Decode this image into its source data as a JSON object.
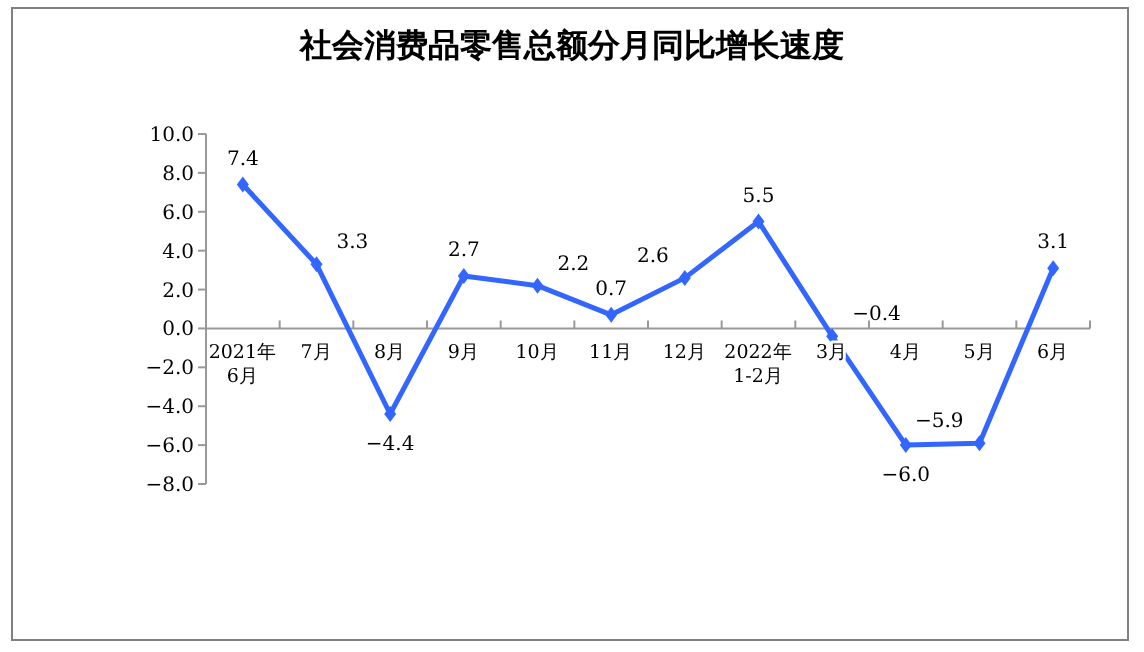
{
  "chart_data": {
    "type": "line",
    "title": "社会消费品零售总额分月同比增长速度",
    "categories": [
      "2021年\n6月",
      "7月",
      "8月",
      "9月",
      "10月",
      "11月",
      "12月",
      "2022年\n1-2月",
      "3月",
      "4月",
      "5月",
      "6月"
    ],
    "series": [
      {
        "color": "#3366ff",
        "values": [
          7.4,
          3.3,
          -4.4,
          2.7,
          2.2,
          0.7,
          2.6,
          5.5,
          -0.4,
          -6.0,
          -5.9,
          3.1
        ],
        "value_labels": [
          "7.4",
          "3.3",
          "−4.4",
          "2.7",
          "2.2",
          "0.7",
          "2.6",
          "5.5",
          "−0.4",
          "−6.0",
          "−5.9",
          "3.1"
        ]
      }
    ],
    "ylim": [
      -8,
      10
    ],
    "yticks": [
      {
        "value": -8,
        "label": "−8.0"
      },
      {
        "value": -6,
        "label": "−6.0"
      },
      {
        "value": -4,
        "label": "−4.0"
      },
      {
        "value": -2,
        "label": "−2.0"
      },
      {
        "value": 0,
        "label": "0.0"
      },
      {
        "value": 2,
        "label": "2.0"
      },
      {
        "value": 4,
        "label": "4.0"
      },
      {
        "value": 6,
        "label": "6.0"
      },
      {
        "value": 8,
        "label": "8.0"
      },
      {
        "value": 10,
        "label": "10.0"
      }
    ],
    "marker": "diamond",
    "grid": false
  }
}
